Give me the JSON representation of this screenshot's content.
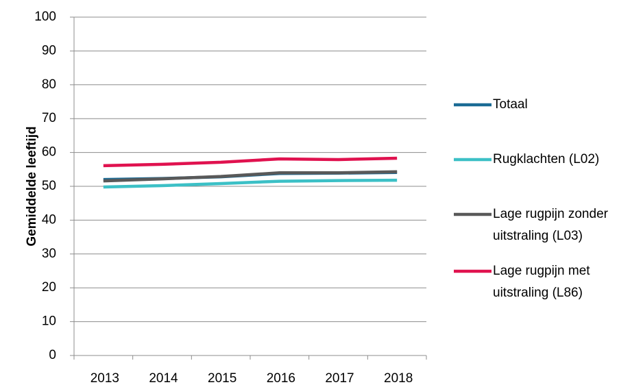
{
  "chart_data": {
    "type": "line",
    "y_label": "Gemiddelde leeftijd",
    "categories": [
      "2013",
      "2014",
      "2015",
      "2016",
      "2017",
      "2018"
    ],
    "series": [
      {
        "name": "Totaal",
        "color": "#1b6b95",
        "values": [
          52.0,
          52.3,
          52.8,
          53.8,
          53.9,
          54.1
        ]
      },
      {
        "name": "Rugklachten (L02)",
        "color": "#3cc0c6",
        "values": [
          49.8,
          50.2,
          50.8,
          51.5,
          51.7,
          51.8
        ]
      },
      {
        "name": "Lage rugpijn zonder uitstraling (L03)",
        "color": "#595959",
        "values": [
          51.6,
          52.2,
          52.9,
          54.0,
          54.0,
          54.3
        ]
      },
      {
        "name": "Lage rugpijn met uitstraling (L86)",
        "color": "#e0124f",
        "values": [
          56.1,
          56.5,
          57.1,
          58.1,
          57.9,
          58.3
        ]
      }
    ],
    "ylim": [
      0,
      100
    ],
    "yticks": [
      0,
      10,
      20,
      30,
      40,
      50,
      60,
      70,
      80,
      90,
      100
    ],
    "grid": true,
    "legend": "right"
  }
}
